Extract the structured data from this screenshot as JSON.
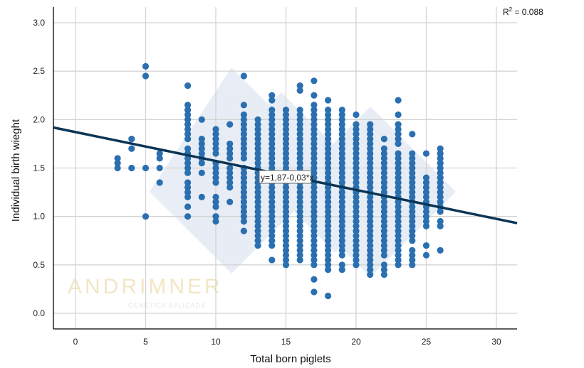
{
  "chart_data": {
    "type": "scatter",
    "title": "",
    "xlabel": "Total born piglets",
    "ylabel": "Individual birth wieght",
    "xlim": [
      -1.6,
      31.3
    ],
    "ylim": [
      -0.17,
      3.15
    ],
    "xticks": [
      0,
      5,
      10,
      15,
      20,
      25,
      30
    ],
    "yticks": [
      0.0,
      0.5,
      1.0,
      1.5,
      2.0,
      2.5,
      3.0
    ],
    "ytick_labels": [
      "0.0",
      "0.5",
      "1.0",
      "1.5",
      "2.0",
      "2.5",
      "3.0"
    ],
    "grid": true,
    "point_color": "#2a6fb0",
    "line_color": "#0b3556",
    "y_step": 0.05,
    "columns": [
      {
        "x": 3,
        "ranges": [
          [
            1.5,
            1.6
          ]
        ]
      },
      {
        "x": 4,
        "ranges": [
          [
            1.5,
            1.5
          ],
          [
            1.7,
            1.7
          ],
          [
            1.8,
            1.8
          ]
        ]
      },
      {
        "x": 5,
        "ranges": [
          [
            1.0,
            1.0
          ],
          [
            1.5,
            1.5
          ],
          [
            2.45,
            2.45
          ],
          [
            2.55,
            2.55
          ]
        ]
      },
      {
        "x": 6,
        "ranges": [
          [
            1.35,
            1.35
          ],
          [
            1.5,
            1.5
          ],
          [
            1.6,
            1.65
          ]
        ]
      },
      {
        "x": 8,
        "ranges": [
          [
            1.0,
            1.0
          ],
          [
            1.1,
            1.1
          ],
          [
            1.2,
            1.35
          ],
          [
            1.45,
            1.7
          ],
          [
            1.8,
            1.95
          ],
          [
            2.0,
            2.15
          ],
          [
            2.35,
            2.35
          ]
        ]
      },
      {
        "x": 9,
        "ranges": [
          [
            1.2,
            1.2
          ],
          [
            1.45,
            1.45
          ],
          [
            1.55,
            1.8
          ],
          [
            2.0,
            2.0
          ]
        ]
      },
      {
        "x": 10,
        "ranges": [
          [
            0.95,
            1.0
          ],
          [
            1.1,
            1.2
          ],
          [
            1.35,
            1.55
          ],
          [
            1.65,
            1.9
          ]
        ]
      },
      {
        "x": 11,
        "ranges": [
          [
            1.15,
            1.15
          ],
          [
            1.3,
            1.5
          ],
          [
            1.6,
            1.75
          ],
          [
            1.95,
            1.95
          ]
        ]
      },
      {
        "x": 12,
        "ranges": [
          [
            0.85,
            0.85
          ],
          [
            0.95,
            1.5
          ],
          [
            1.6,
            2.05
          ],
          [
            2.15,
            2.15
          ],
          [
            2.45,
            2.45
          ]
        ]
      },
      {
        "x": 13,
        "ranges": [
          [
            0.7,
            2.0
          ]
        ]
      },
      {
        "x": 14,
        "ranges": [
          [
            0.55,
            0.55
          ],
          [
            0.7,
            2.1
          ],
          [
            2.2,
            2.25
          ]
        ]
      },
      {
        "x": 15,
        "ranges": [
          [
            0.5,
            2.1
          ]
        ]
      },
      {
        "x": 16,
        "ranges": [
          [
            0.55,
            2.1
          ],
          [
            2.3,
            2.35
          ]
        ]
      },
      {
        "x": 17,
        "ranges": [
          [
            0.22,
            0.22
          ],
          [
            0.35,
            0.35
          ],
          [
            0.5,
            2.05
          ],
          [
            2.1,
            2.15
          ],
          [
            2.25,
            2.25
          ],
          [
            2.4,
            2.4
          ]
        ]
      },
      {
        "x": 18,
        "ranges": [
          [
            0.18,
            0.18
          ],
          [
            0.45,
            2.1
          ],
          [
            2.2,
            2.2
          ]
        ]
      },
      {
        "x": 19,
        "ranges": [
          [
            0.45,
            0.5
          ],
          [
            0.6,
            2.1
          ]
        ]
      },
      {
        "x": 20,
        "ranges": [
          [
            0.5,
            1.95
          ],
          [
            2.05,
            2.05
          ]
        ]
      },
      {
        "x": 21,
        "ranges": [
          [
            0.4,
            1.95
          ]
        ]
      },
      {
        "x": 22,
        "ranges": [
          [
            0.4,
            0.5
          ],
          [
            0.6,
            1.7
          ],
          [
            1.8,
            1.8
          ]
        ]
      },
      {
        "x": 23,
        "ranges": [
          [
            0.5,
            1.65
          ],
          [
            1.75,
            1.95
          ],
          [
            2.05,
            2.05
          ],
          [
            2.2,
            2.2
          ]
        ]
      },
      {
        "x": 24,
        "ranges": [
          [
            0.5,
            0.65
          ],
          [
            0.75,
            1.65
          ],
          [
            1.85,
            1.85
          ]
        ]
      },
      {
        "x": 25,
        "ranges": [
          [
            0.6,
            0.6
          ],
          [
            0.7,
            0.7
          ],
          [
            0.9,
            1.4
          ],
          [
            1.65,
            1.65
          ]
        ]
      },
      {
        "x": 26,
        "ranges": [
          [
            0.65,
            0.65
          ],
          [
            0.9,
            0.95
          ],
          [
            1.05,
            1.7
          ]
        ]
      }
    ],
    "regression": {
      "intercept": 1.87,
      "slope": -0.03,
      "label": "y=1,87-0,03*x"
    },
    "r_squared_label": "R",
    "r_squared_sup": "2",
    "r_squared_value": " = 0.088"
  },
  "watermark": {
    "brand": "ANDRIMNER",
    "tagline": "GENÉTICA APLICADA"
  }
}
